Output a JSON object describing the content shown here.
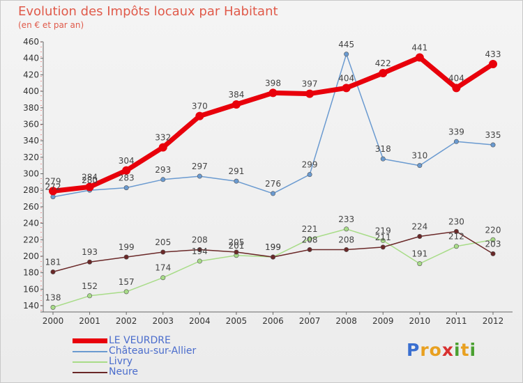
{
  "title": "Evolution des Impôts locaux par Habitant",
  "subtitle": "(en € et par an)",
  "logo": {
    "letters": [
      "P",
      "r",
      "o",
      "x",
      "i",
      "t",
      "i"
    ],
    "colors": [
      "#3a6fd0",
      "#e8a020",
      "#e8a020",
      "#d83030",
      "#4aa030",
      "#e8a020",
      "#4aa030"
    ]
  },
  "chart_data": {
    "type": "line",
    "x": [
      2000,
      2001,
      2002,
      2003,
      2004,
      2005,
      2006,
      2007,
      2008,
      2009,
      2010,
      2011,
      2012
    ],
    "ylim": [
      130,
      460
    ],
    "yticks": [
      140,
      160,
      180,
      200,
      220,
      240,
      260,
      280,
      300,
      320,
      340,
      360,
      380,
      400,
      420,
      440,
      460
    ],
    "grid": false,
    "legend_position": "bottom-left",
    "series": [
      {
        "name": "LE VEURDRE",
        "color": "#e8000b",
        "values": [
          279,
          284,
          304,
          332,
          370,
          384,
          398,
          397,
          404,
          422,
          441,
          404,
          433
        ],
        "labels": [
          "279",
          "284",
          "304",
          "332",
          "370",
          "384",
          "398",
          "397",
          "404",
          "422",
          "441",
          "404",
          "433"
        ],
        "thick": true
      },
      {
        "name": "Château-sur-Allier",
        "color": "#6a9ad0",
        "values": [
          272,
          280,
          283,
          293,
          297,
          291,
          276,
          299,
          445,
          318,
          310,
          339,
          335
        ],
        "labels": [
          "272",
          "280",
          "283",
          "293",
          "297",
          "291",
          "276",
          "299",
          "445",
          "318",
          "310",
          "339",
          "335"
        ],
        "thick": false
      },
      {
        "name": "Livry",
        "color": "#a8dc88",
        "values": [
          138,
          152,
          157,
          174,
          194,
          201,
          199,
          221,
          233,
          219,
          191,
          212,
          220
        ],
        "labels": [
          "138",
          "152",
          "157",
          "174",
          "194",
          "201",
          "199",
          "221",
          "233",
          "219",
          "191",
          "212",
          "220"
        ],
        "thick": false
      },
      {
        "name": "Neure",
        "color": "#6a2828",
        "values": [
          181,
          193,
          199,
          205,
          208,
          205,
          199,
          208,
          208,
          211,
          224,
          230,
          203
        ],
        "labels": [
          "181",
          "193",
          "199",
          "205",
          "208",
          "205",
          "199",
          "208",
          "208",
          "211",
          "224",
          "230",
          "203"
        ],
        "thick": false
      }
    ]
  }
}
